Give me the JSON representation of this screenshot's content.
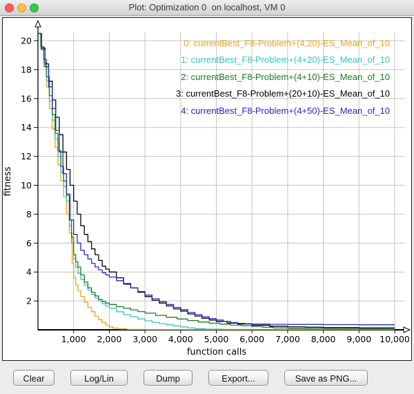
{
  "window": {
    "title": "Plot: Optimization 0  on localhost, VM 0",
    "controls": [
      "close",
      "minimize",
      "zoom"
    ]
  },
  "chart_data": {
    "type": "line",
    "xlabel": "function calls",
    "ylabel": "fitness",
    "xlim": [
      0,
      10000
    ],
    "ylim": [
      0,
      20
    ],
    "grid": true,
    "legend_position": "top-right",
    "x_ticks": [
      {
        "v": 1000,
        "label": "1,000"
      },
      {
        "v": 2000,
        "label": "2,000"
      },
      {
        "v": 3000,
        "label": "3,000"
      },
      {
        "v": 4000,
        "label": "4,000"
      },
      {
        "v": 5000,
        "label": "5,000"
      },
      {
        "v": 6000,
        "label": "6,000"
      },
      {
        "v": 7000,
        "label": "7,000"
      },
      {
        "v": 8000,
        "label": "8,000"
      },
      {
        "v": 9000,
        "label": "9,000"
      },
      {
        "v": 10000,
        "label": "10,000"
      }
    ],
    "y_ticks": [
      2,
      4,
      6,
      8,
      10,
      12,
      14,
      16,
      18,
      20
    ],
    "series": [
      {
        "label": "0: currentBest_F8-Problem+(4,20)-ES_Mean_of_10",
        "color": "#e9a512",
        "points": [
          [
            0,
            20.5
          ],
          [
            80,
            19.4
          ],
          [
            160,
            18.2
          ],
          [
            240,
            16.8
          ],
          [
            320,
            15.3
          ],
          [
            400,
            13.9
          ],
          [
            480,
            12.6
          ],
          [
            560,
            11.4
          ],
          [
            640,
            10.3
          ],
          [
            720,
            9.2
          ],
          [
            800,
            8.0
          ],
          [
            880,
            6.7
          ],
          [
            960,
            4.6
          ],
          [
            1000,
            3.6
          ],
          [
            1060,
            3.1
          ],
          [
            1120,
            2.7
          ],
          [
            1200,
            2.3
          ],
          [
            1300,
            1.9
          ],
          [
            1400,
            1.55
          ],
          [
            1500,
            1.25
          ],
          [
            1600,
            0.95
          ],
          [
            1700,
            0.7
          ],
          [
            1800,
            0.5
          ],
          [
            1900,
            0.33
          ],
          [
            2000,
            0.2
          ],
          [
            2100,
            0.12
          ],
          [
            2250,
            0.06
          ],
          [
            2500,
            0.03
          ],
          [
            3000,
            0.02
          ],
          [
            10000,
            0.02
          ]
        ]
      },
      {
        "label": "1: currentBest_F8-Problem+(4+20)-ES_Mean_of_10",
        "color": "#3ec3b6",
        "points": [
          [
            0,
            20.5
          ],
          [
            80,
            19.5
          ],
          [
            160,
            18.5
          ],
          [
            240,
            17.2
          ],
          [
            320,
            15.8
          ],
          [
            400,
            14.5
          ],
          [
            480,
            13.2
          ],
          [
            560,
            12.0
          ],
          [
            640,
            10.9
          ],
          [
            720,
            9.9
          ],
          [
            800,
            8.9
          ],
          [
            880,
            7.2
          ],
          [
            940,
            6.0
          ],
          [
            1000,
            4.9
          ],
          [
            1060,
            4.3
          ],
          [
            1120,
            3.9
          ],
          [
            1200,
            3.5
          ],
          [
            1300,
            3.1
          ],
          [
            1400,
            2.75
          ],
          [
            1500,
            2.45
          ],
          [
            1600,
            2.2
          ],
          [
            1700,
            2.0
          ],
          [
            1800,
            1.8
          ],
          [
            1900,
            1.65
          ],
          [
            2000,
            1.5
          ],
          [
            2200,
            1.25
          ],
          [
            2400,
            1.05
          ],
          [
            2600,
            0.9
          ],
          [
            2800,
            0.75
          ],
          [
            3000,
            0.62
          ],
          [
            3200,
            0.52
          ],
          [
            3400,
            0.43
          ],
          [
            3600,
            0.35
          ],
          [
            3800,
            0.27
          ],
          [
            4000,
            0.2
          ],
          [
            4200,
            0.13
          ],
          [
            4400,
            0.08
          ],
          [
            4700,
            0.05
          ],
          [
            5200,
            0.03
          ],
          [
            10000,
            0.03
          ]
        ]
      },
      {
        "label": "2: currentBest_F8-Problem+(4+10)-ES_Mean_of_10",
        "color": "#1e7a1e",
        "points": [
          [
            0,
            20.5
          ],
          [
            80,
            19.6
          ],
          [
            160,
            18.7
          ],
          [
            240,
            17.5
          ],
          [
            320,
            16.2
          ],
          [
            400,
            14.9
          ],
          [
            480,
            13.6
          ],
          [
            560,
            12.4
          ],
          [
            640,
            11.3
          ],
          [
            720,
            10.3
          ],
          [
            800,
            9.3
          ],
          [
            880,
            7.6
          ],
          [
            940,
            6.4
          ],
          [
            1000,
            5.2
          ],
          [
            1060,
            4.7
          ],
          [
            1120,
            4.35
          ],
          [
            1200,
            3.8
          ],
          [
            1300,
            3.3
          ],
          [
            1400,
            2.9
          ],
          [
            1500,
            2.6
          ],
          [
            1600,
            2.35
          ],
          [
            1700,
            2.1
          ],
          [
            1800,
            1.95
          ],
          [
            1900,
            1.85
          ],
          [
            2000,
            1.75
          ],
          [
            2200,
            1.6
          ],
          [
            2400,
            1.5
          ],
          [
            2600,
            1.38
          ],
          [
            2800,
            1.26
          ],
          [
            3000,
            1.15
          ],
          [
            3300,
            1.0
          ],
          [
            3600,
            0.87
          ],
          [
            3900,
            0.75
          ],
          [
            4200,
            0.64
          ],
          [
            4500,
            0.54
          ],
          [
            4800,
            0.46
          ],
          [
            5100,
            0.39
          ],
          [
            5400,
            0.33
          ],
          [
            5700,
            0.28
          ],
          [
            6000,
            0.23
          ],
          [
            6300,
            0.18
          ],
          [
            6600,
            0.14
          ],
          [
            7000,
            0.11
          ],
          [
            7500,
            0.09
          ],
          [
            8000,
            0.08
          ],
          [
            9000,
            0.07
          ],
          [
            10000,
            0.07
          ]
        ]
      },
      {
        "label": "3: currentBest_F8-Problem+(20+10)-ES_Mean_of_10",
        "color": "#000000",
        "points": [
          [
            0,
            20.5
          ],
          [
            100,
            19.5
          ],
          [
            200,
            18.4
          ],
          [
            300,
            17.2
          ],
          [
            400,
            15.9
          ],
          [
            500,
            14.7
          ],
          [
            600,
            13.5
          ],
          [
            700,
            12.3
          ],
          [
            800,
            11.1
          ],
          [
            900,
            10.0
          ],
          [
            1000,
            8.9
          ],
          [
            1100,
            8.0
          ],
          [
            1200,
            7.2
          ],
          [
            1300,
            6.6
          ],
          [
            1400,
            6.1
          ],
          [
            1500,
            5.6
          ],
          [
            1600,
            5.2
          ],
          [
            1700,
            4.8
          ],
          [
            1800,
            4.4
          ],
          [
            1900,
            4.2
          ],
          [
            2000,
            4.0
          ],
          [
            2200,
            3.6
          ],
          [
            2400,
            3.2
          ],
          [
            2600,
            2.9
          ],
          [
            2800,
            2.6
          ],
          [
            3000,
            2.3
          ],
          [
            3200,
            2.05
          ],
          [
            3400,
            1.85
          ],
          [
            3600,
            1.65
          ],
          [
            3800,
            1.45
          ],
          [
            4000,
            1.3
          ],
          [
            4200,
            1.1
          ],
          [
            4400,
            0.95
          ],
          [
            4600,
            0.8
          ],
          [
            4800,
            0.68
          ],
          [
            5000,
            0.58
          ],
          [
            5300,
            0.47
          ],
          [
            5600,
            0.4
          ],
          [
            6000,
            0.32
          ],
          [
            6500,
            0.25
          ],
          [
            7000,
            0.21
          ],
          [
            7500,
            0.18
          ],
          [
            8000,
            0.16
          ],
          [
            9000,
            0.14
          ],
          [
            10000,
            0.13
          ]
        ]
      },
      {
        "label": "4: currentBest_F8-Problem+(4+50)-ES_Mean_of_10",
        "color": "#2727c4",
        "points": [
          [
            0,
            20.5
          ],
          [
            100,
            19.4
          ],
          [
            200,
            18.2
          ],
          [
            300,
            16.8
          ],
          [
            400,
            15.3
          ],
          [
            500,
            13.8
          ],
          [
            600,
            12.3
          ],
          [
            700,
            10.8
          ],
          [
            800,
            9.4
          ],
          [
            900,
            7.6
          ],
          [
            1000,
            6.6
          ],
          [
            1100,
            6.0
          ],
          [
            1200,
            5.5
          ],
          [
            1300,
            5.2
          ],
          [
            1400,
            4.9
          ],
          [
            1500,
            4.6
          ],
          [
            1600,
            4.35
          ],
          [
            1700,
            4.15
          ],
          [
            1800,
            3.95
          ],
          [
            1900,
            3.8
          ],
          [
            2000,
            3.65
          ],
          [
            2200,
            3.4
          ],
          [
            2400,
            3.15
          ],
          [
            2600,
            2.9
          ],
          [
            2800,
            2.65
          ],
          [
            3000,
            2.4
          ],
          [
            3200,
            2.15
          ],
          [
            3400,
            1.95
          ],
          [
            3600,
            1.75
          ],
          [
            3800,
            1.55
          ],
          [
            4000,
            1.4
          ],
          [
            4200,
            1.2
          ],
          [
            4400,
            1.05
          ],
          [
            4600,
            0.9
          ],
          [
            4800,
            0.78
          ],
          [
            5000,
            0.68
          ],
          [
            5200,
            0.58
          ],
          [
            5400,
            0.5
          ],
          [
            5600,
            0.45
          ],
          [
            5800,
            0.42
          ],
          [
            6000,
            0.4
          ],
          [
            6500,
            0.38
          ],
          [
            7000,
            0.37
          ],
          [
            8000,
            0.36
          ],
          [
            9000,
            0.35
          ],
          [
            10000,
            0.35
          ]
        ]
      }
    ],
    "colors": {
      "grid": "#c3c3c3",
      "axis": "#000000",
      "plot_background": "#ffffff",
      "window_background": "#ececec"
    }
  },
  "footer": {
    "buttons": [
      {
        "label": "Clear"
      },
      {
        "label": "Log/Lin"
      },
      {
        "label": "Dump"
      },
      {
        "label": "Export..."
      },
      {
        "label": "Save as PNG..."
      }
    ]
  }
}
